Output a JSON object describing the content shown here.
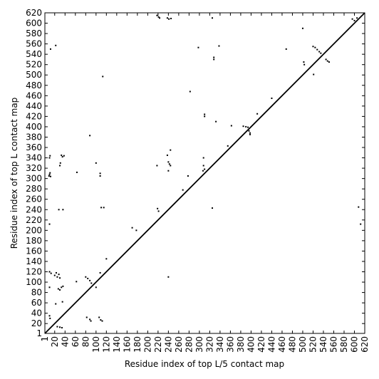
{
  "chart_data": {
    "type": "scatter",
    "xlabel": "Residue index of top L/5 contact map",
    "ylabel": "Residue index of top L contact map",
    "color": "#000000",
    "x": [
      9,
      10,
      11,
      12,
      10,
      11,
      10,
      12,
      22,
      30,
      31,
      33,
      35,
      38,
      28,
      36,
      63,
      88,
      100,
      108,
      108,
      110,
      115,
      113,
      170,
      178,
      218,
      221,
      223,
      218,
      219,
      221,
      238,
      241,
      245,
      240,
      242,
      244,
      238,
      240,
      244,
      268,
      282,
      278,
      298,
      308,
      308,
      310,
      307,
      310,
      310,
      325,
      325,
      328,
      328,
      332,
      338,
      355,
      362,
      385,
      390,
      394,
      396,
      398,
      398,
      412,
      440,
      468,
      500,
      502,
      503,
      520,
      524,
      528,
      532,
      535,
      545,
      548,
      551,
      521,
      596,
      600,
      605,
      10,
      11,
      10,
      10,
      13,
      20,
      23,
      25,
      28,
      30,
      25,
      30,
      34,
      27,
      30,
      33,
      36,
      35,
      22,
      62,
      80,
      84,
      88,
      91,
      82,
      88,
      90,
      100,
      108,
      106,
      109,
      112,
      120,
      240,
      608,
      612
    ],
    "values": [
      305,
      308,
      311,
      304,
      340,
      344,
      212,
      550,
      557,
      325,
      330,
      345,
      342,
      344,
      240,
      240,
      312,
      383,
      330,
      310,
      305,
      244,
      244,
      497,
      205,
      200,
      615,
      612,
      610,
      325,
      242,
      237,
      610,
      608,
      609,
      332,
      328,
      325,
      345,
      315,
      355,
      278,
      468,
      305,
      553,
      340,
      325,
      318,
      315,
      420,
      424,
      610,
      243,
      530,
      534,
      410,
      556,
      363,
      402,
      401,
      400,
      399,
      392,
      388,
      385,
      425,
      455,
      550,
      590,
      525,
      520,
      555,
      553,
      549,
      545,
      542,
      530,
      527,
      525,
      501,
      608,
      605,
      610,
      35,
      30,
      90,
      120,
      117,
      113,
      118,
      110,
      115,
      108,
      14,
      13,
      12,
      87,
      85,
      90,
      92,
      62,
      58,
      101,
      110,
      107,
      103,
      98,
      32,
      28,
      25,
      90,
      118,
      32,
      27,
      25,
      145,
      110,
      245,
      212
    ],
    "xlim": [
      1,
      620
    ],
    "ylim": [
      1,
      620
    ],
    "xticks": [
      1,
      20,
      40,
      60,
      80,
      100,
      120,
      140,
      160,
      180,
      200,
      220,
      240,
      260,
      280,
      300,
      320,
      340,
      360,
      380,
      400,
      420,
      440,
      460,
      480,
      500,
      520,
      540,
      560,
      580,
      600,
      620
    ],
    "yticks": [
      1,
      20,
      40,
      60,
      80,
      100,
      120,
      140,
      160,
      180,
      200,
      220,
      240,
      260,
      280,
      300,
      320,
      340,
      360,
      380,
      400,
      420,
      440,
      460,
      480,
      500,
      520,
      540,
      560,
      580,
      600,
      620
    ]
  }
}
